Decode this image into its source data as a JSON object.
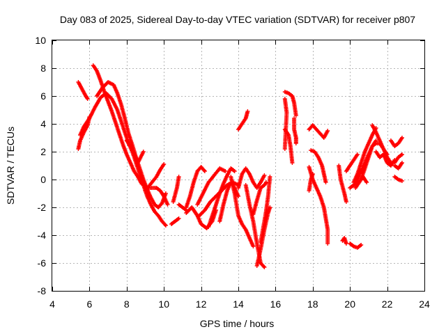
{
  "chart_data": {
    "type": "scatter",
    "title": "Day 083 of 2025, Sidereal Day-to-day VTEC variation (SDTVAR) for receiver p807",
    "xlabel": "GPS time / hours",
    "ylabel": "SDTVAR / TECUs",
    "xlim": [
      4,
      24
    ],
    "ylim": [
      -8,
      10
    ],
    "x_ticks": [
      4,
      6,
      8,
      10,
      12,
      14,
      16,
      18,
      20,
      22,
      24
    ],
    "y_ticks": [
      -8,
      -6,
      -4,
      -2,
      0,
      2,
      4,
      6,
      8,
      10
    ],
    "grid": true,
    "marker": "+",
    "color": "#ff0000",
    "tracks": [
      [
        [
          5.4,
          7.0
        ],
        [
          5.6,
          6.5
        ],
        [
          5.8,
          6.0
        ],
        [
          5.9,
          5.8
        ]
      ],
      [
        [
          5.4,
          2.2
        ],
        [
          5.5,
          2.8
        ],
        [
          5.7,
          3.4
        ],
        [
          5.9,
          3.9
        ],
        [
          6.0,
          4.5
        ]
      ],
      [
        [
          5.5,
          3.2
        ],
        [
          5.7,
          3.8
        ],
        [
          6.0,
          4.4
        ],
        [
          6.3,
          5.2
        ],
        [
          6.6,
          5.9
        ],
        [
          6.9,
          6.2
        ],
        [
          7.2,
          5.8
        ],
        [
          7.5,
          5.0
        ],
        [
          7.7,
          4.2
        ],
        [
          7.9,
          3.4
        ],
        [
          8.1,
          2.6
        ],
        [
          8.3,
          2.0
        ],
        [
          8.5,
          1.2
        ],
        [
          8.7,
          0.4
        ],
        [
          8.9,
          -0.4
        ],
        [
          9.1,
          -1.2
        ],
        [
          9.3,
          -1.8
        ],
        [
          9.5,
          -2.3
        ],
        [
          9.7,
          -2.6
        ],
        [
          9.9,
          -3.0
        ],
        [
          10.1,
          -3.3
        ]
      ],
      [
        [
          6.2,
          8.2
        ],
        [
          6.4,
          7.8
        ],
        [
          6.6,
          7.1
        ],
        [
          6.8,
          6.3
        ],
        [
          7.0,
          5.6
        ],
        [
          7.2,
          4.9
        ],
        [
          7.4,
          4.1
        ],
        [
          7.6,
          3.3
        ],
        [
          7.8,
          2.5
        ],
        [
          8.0,
          1.8
        ],
        [
          8.2,
          1.2
        ],
        [
          8.4,
          0.6
        ],
        [
          8.6,
          0.2
        ],
        [
          8.8,
          -0.3
        ],
        [
          9.0,
          -0.5
        ],
        [
          9.2,
          -0.6
        ],
        [
          9.4,
          -0.6
        ],
        [
          9.6,
          -0.6
        ],
        [
          9.8,
          -0.8
        ],
        [
          10.0,
          -1.2
        ],
        [
          10.2,
          -1.8
        ]
      ],
      [
        [
          6.4,
          6.0
        ],
        [
          6.7,
          6.6
        ],
        [
          7.0,
          7.0
        ],
        [
          7.3,
          6.8
        ],
        [
          7.5,
          6.2
        ],
        [
          7.7,
          5.4
        ],
        [
          7.9,
          4.4
        ],
        [
          8.1,
          3.3
        ],
        [
          8.3,
          2.5
        ],
        [
          8.5,
          1.6
        ],
        [
          8.7,
          0.8
        ],
        [
          8.9,
          0.0
        ],
        [
          9.1,
          -0.7
        ],
        [
          9.3,
          -1.3
        ],
        [
          9.5,
          -1.8
        ],
        [
          9.7,
          -2.0
        ],
        [
          9.9,
          -1.7
        ],
        [
          10.1,
          -1.0
        ]
      ],
      [
        [
          8.0,
          2.8
        ],
        [
          8.3,
          2.2
        ],
        [
          8.6,
          1.2
        ],
        [
          8.9,
          2.0
        ]
      ],
      [
        [
          9.0,
          -0.8
        ],
        [
          9.3,
          -0.3
        ],
        [
          9.6,
          0.2
        ],
        [
          9.8,
          0.7
        ],
        [
          10.0,
          1.1
        ]
      ],
      [
        [
          10.4,
          -3.2
        ],
        [
          10.6,
          -3.0
        ],
        [
          10.8,
          -2.8
        ]
      ],
      [
        [
          10.5,
          -1.6
        ],
        [
          10.7,
          -0.6
        ],
        [
          10.8,
          0.2
        ]
      ],
      [
        [
          10.8,
          -1.8
        ],
        [
          11.0,
          -2.0
        ],
        [
          11.2,
          -2.2
        ]
      ],
      [
        [
          11.2,
          -2.0
        ],
        [
          11.4,
          -1.2
        ],
        [
          11.6,
          -0.2
        ],
        [
          11.8,
          0.6
        ],
        [
          12.0,
          0.9
        ],
        [
          12.2,
          0.6
        ]
      ],
      [
        [
          11.2,
          -2.4
        ],
        [
          11.5,
          -2.0
        ],
        [
          11.8,
          -2.6
        ],
        [
          12.0,
          -3.2
        ],
        [
          12.3,
          -3.5
        ],
        [
          12.6,
          -3.0
        ],
        [
          12.8,
          -2.2
        ]
      ],
      [
        [
          11.8,
          -1.8
        ],
        [
          12.1,
          -1.0
        ],
        [
          12.4,
          -0.2
        ],
        [
          12.7,
          0.3
        ],
        [
          13.0,
          0.8
        ],
        [
          13.3,
          0.6
        ]
      ],
      [
        [
          11.9,
          -2.6
        ],
        [
          12.2,
          -2.2
        ],
        [
          12.5,
          -1.6
        ],
        [
          12.8,
          -1.2
        ],
        [
          13.1,
          -0.8
        ],
        [
          13.4,
          -0.4
        ],
        [
          13.7,
          -0.2
        ],
        [
          14.0,
          -0.4
        ]
      ],
      [
        [
          12.4,
          -3.4
        ],
        [
          12.6,
          -2.6
        ],
        [
          12.8,
          -1.8
        ],
        [
          13.0,
          -1.0
        ],
        [
          13.2,
          -0.3
        ],
        [
          13.4,
          0.3
        ],
        [
          13.6,
          0.8
        ],
        [
          13.8,
          0.6
        ]
      ],
      [
        [
          13.0,
          -3.0
        ],
        [
          13.2,
          -1.8
        ],
        [
          13.4,
          -0.8
        ],
        [
          13.6,
          -0.2
        ],
        [
          13.8,
          -0.6
        ],
        [
          14.0,
          -1.2
        ]
      ],
      [
        [
          13.6,
          0.2
        ],
        [
          13.8,
          -1.0
        ],
        [
          14.0,
          -2.6
        ],
        [
          14.2,
          -3.2
        ],
        [
          14.4,
          -3.6
        ],
        [
          14.6,
          -4.2
        ],
        [
          14.8,
          -4.8
        ]
      ],
      [
        [
          14.0,
          3.6
        ],
        [
          14.2,
          4.0
        ],
        [
          14.4,
          4.4
        ],
        [
          14.5,
          4.9
        ]
      ],
      [
        [
          14.0,
          -0.6
        ],
        [
          14.2,
          0.4
        ],
        [
          14.4,
          0.8
        ],
        [
          14.6,
          0.4
        ],
        [
          14.8,
          -0.2
        ],
        [
          15.0,
          -0.6
        ],
        [
          15.2,
          -0.2
        ],
        [
          15.4,
          0.3
        ]
      ],
      [
        [
          14.4,
          -0.4
        ],
        [
          14.6,
          -1.8
        ],
        [
          14.8,
          -3.0
        ],
        [
          15.0,
          -4.6
        ],
        [
          15.2,
          -6.0
        ],
        [
          15.4,
          -6.3
        ]
      ],
      [
        [
          14.8,
          -2.5
        ],
        [
          15.0,
          -1.5
        ],
        [
          15.2,
          -0.6
        ],
        [
          15.4,
          -0.4
        ],
        [
          15.5,
          -0.2
        ]
      ],
      [
        [
          15.0,
          -6.2
        ],
        [
          15.2,
          -5.0
        ],
        [
          15.4,
          -3.6
        ],
        [
          15.6,
          -2.4
        ],
        [
          15.7,
          -2.0
        ]
      ],
      [
        [
          15.2,
          -4.5
        ],
        [
          15.4,
          -3.0
        ],
        [
          15.5,
          -2.2
        ],
        [
          15.6,
          -1.2
        ],
        [
          15.7,
          0.2
        ]
      ],
      [
        [
          16.5,
          6.3
        ],
        [
          16.7,
          6.2
        ],
        [
          16.9,
          6.0
        ],
        [
          17.0,
          5.5
        ],
        [
          17.1,
          4.6
        ]
      ],
      [
        [
          16.5,
          3.6
        ],
        [
          16.7,
          3.2
        ],
        [
          16.8,
          2.4
        ],
        [
          16.9,
          1.2
        ]
      ],
      [
        [
          17.0,
          4.4
        ],
        [
          17.0,
          3.6
        ],
        [
          17.1,
          3.0
        ],
        [
          17.1,
          2.6
        ]
      ],
      [
        [
          16.5,
          2.2
        ],
        [
          16.6,
          4.8
        ],
        [
          16.5,
          5.8
        ]
      ],
      [
        [
          17.8,
          3.6
        ],
        [
          18.0,
          3.9
        ],
        [
          18.2,
          3.6
        ],
        [
          18.4,
          3.3
        ],
        [
          18.6,
          3.0
        ],
        [
          18.8,
          3.5
        ]
      ],
      [
        [
          17.9,
          2.1
        ],
        [
          18.1,
          2.0
        ],
        [
          18.3,
          1.6
        ],
        [
          18.5,
          1.0
        ],
        [
          18.6,
          0.4
        ],
        [
          18.7,
          -0.2
        ]
      ],
      [
        [
          17.8,
          0.9
        ],
        [
          18.0,
          0.0
        ],
        [
          18.2,
          -0.6
        ],
        [
          18.4,
          -1.2
        ],
        [
          18.6,
          -2.0
        ],
        [
          18.7,
          -2.8
        ],
        [
          18.8,
          -3.6
        ],
        [
          18.8,
          -4.6
        ]
      ],
      [
        [
          17.8,
          -0.8
        ],
        [
          17.9,
          0.0
        ],
        [
          18.0,
          0.4
        ]
      ],
      [
        [
          19.6,
          -4.4
        ],
        [
          19.7,
          -4.2
        ],
        [
          19.8,
          -4.6
        ]
      ],
      [
        [
          19.4,
          1.0
        ],
        [
          19.5,
          0.0
        ],
        [
          19.7,
          -1.0
        ],
        [
          19.8,
          -1.6
        ]
      ],
      [
        [
          19.8,
          0.6
        ],
        [
          20.0,
          1.0
        ],
        [
          20.2,
          1.4
        ],
        [
          20.4,
          1.8
        ]
      ],
      [
        [
          20.0,
          -4.6
        ],
        [
          20.2,
          -4.8
        ],
        [
          20.4,
          -4.9
        ],
        [
          20.6,
          -4.7
        ]
      ],
      [
        [
          20.0,
          -0.6
        ],
        [
          20.2,
          -0.4
        ],
        [
          20.4,
          0.0
        ],
        [
          20.6,
          0.6
        ],
        [
          20.8,
          1.2
        ],
        [
          21.0,
          1.8
        ],
        [
          21.2,
          2.4
        ],
        [
          21.4,
          2.8
        ]
      ],
      [
        [
          20.2,
          -0.2
        ],
        [
          20.4,
          0.4
        ],
        [
          20.6,
          1.2
        ],
        [
          20.8,
          2.0
        ],
        [
          21.0,
          2.6
        ],
        [
          21.2,
          3.2
        ],
        [
          21.4,
          3.7
        ]
      ],
      [
        [
          20.3,
          -0.6
        ],
        [
          20.5,
          -0.2
        ],
        [
          20.7,
          0.2
        ],
        [
          20.9,
          -0.2
        ]
      ],
      [
        [
          20.6,
          0.0
        ],
        [
          20.8,
          0.8
        ],
        [
          21.0,
          1.6
        ],
        [
          21.2,
          2.4
        ],
        [
          21.4,
          2.6
        ],
        [
          21.6,
          2.6
        ],
        [
          21.8,
          2.2
        ],
        [
          22.0,
          1.8
        ]
      ],
      [
        [
          21.2,
          3.9
        ],
        [
          21.4,
          3.4
        ],
        [
          21.6,
          2.8
        ],
        [
          21.8,
          2.2
        ],
        [
          22.0,
          1.6
        ],
        [
          22.2,
          1.2
        ]
      ],
      [
        [
          21.4,
          2.0
        ],
        [
          21.6,
          1.6
        ],
        [
          21.8,
          1.8
        ],
        [
          22.0,
          1.2
        ],
        [
          22.2,
          1.0
        ],
        [
          22.4,
          1.4
        ]
      ],
      [
        [
          22.2,
          2.8
        ],
        [
          22.4,
          2.4
        ],
        [
          22.6,
          2.6
        ],
        [
          22.8,
          3.0
        ]
      ],
      [
        [
          22.4,
          1.2
        ],
        [
          22.6,
          1.6
        ],
        [
          22.8,
          1.8
        ]
      ],
      [
        [
          22.4,
          0.2
        ],
        [
          22.6,
          0.0
        ],
        [
          22.8,
          -0.1
        ]
      ],
      [
        [
          22.4,
          1.0
        ],
        [
          22.6,
          0.8
        ],
        [
          22.8,
          1.2
        ]
      ]
    ]
  }
}
